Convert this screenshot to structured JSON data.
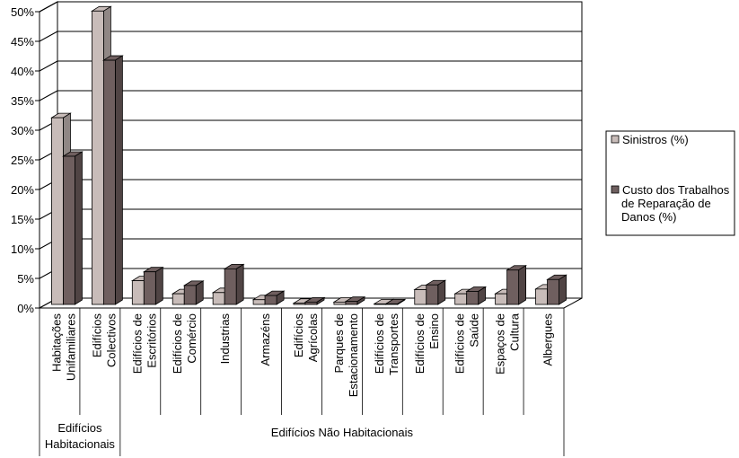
{
  "chart_data": {
    "type": "bar",
    "categories": [
      [
        "Habitações",
        "Unifamiliares"
      ],
      [
        "Edifícios",
        "Colectivos"
      ],
      [
        "Edifícios de",
        "Escritórios"
      ],
      [
        "Edifícios de",
        "Comércio"
      ],
      [
        "Industrias"
      ],
      [
        "Armazéns"
      ],
      [
        "Edifícios",
        "Agrícolas"
      ],
      [
        "Parques de",
        "Estacionamento"
      ],
      [
        "Edifícios de",
        "Transportes"
      ],
      [
        "Edifícios de",
        "Ensino"
      ],
      [
        "Edifícios de",
        "Saúde"
      ],
      [
        "Espaços de",
        "Cultura"
      ],
      [
        "Albergues"
      ]
    ],
    "series": [
      {
        "name": "Sinistros (%)",
        "color": "#c8bcb9",
        "values": [
          31.5,
          49.5,
          4.0,
          1.8,
          2.0,
          0.8,
          0.2,
          0.4,
          0.1,
          2.5,
          1.8,
          1.8,
          2.6
        ]
      },
      {
        "name": "Custo dos Trabalhos de Reparação de Danos (%)",
        "color": "#6f5f5f",
        "values": [
          25.0,
          41.2,
          5.5,
          3.2,
          6.0,
          1.5,
          0.4,
          0.5,
          0.1,
          3.3,
          2.2,
          5.8,
          4.2
        ]
      }
    ],
    "legend_lines": [
      [
        "Sinistros (%)"
      ],
      [
        "Custo dos Trabalhos",
        "de Reparação de",
        "Danos (%)"
      ]
    ],
    "groups": [
      {
        "lines": [
          "Edifícios",
          "Habitacionais"
        ],
        "from": 0,
        "to": 1
      },
      {
        "lines": [
          "Edifícios Não Habitacionais"
        ],
        "from": 2,
        "to": 12
      }
    ],
    "yticks": [
      "0%",
      "5%",
      "10%",
      "15%",
      "20%",
      "25%",
      "30%",
      "35%",
      "40%",
      "45%",
      "50%"
    ],
    "ylim": [
      0,
      50
    ],
    "grid": true,
    "legend": "right"
  }
}
